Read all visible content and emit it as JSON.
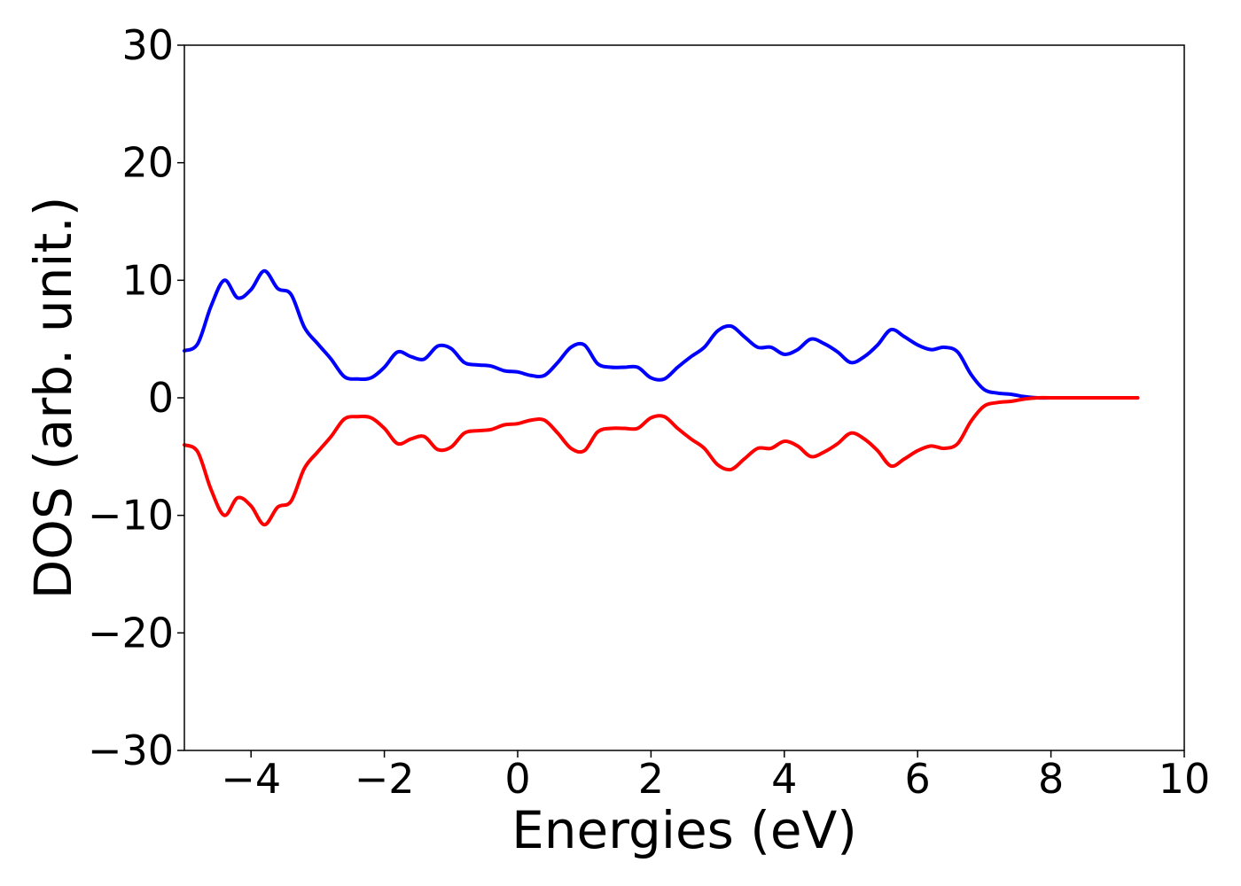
{
  "chart_data": {
    "type": "line",
    "xlabel": "Energies (eV)",
    "ylabel": "DOS (arb. unit.)",
    "xlim": [
      -5,
      10
    ],
    "ylim": [
      -30,
      30
    ],
    "xticks": [
      {
        "value": -4,
        "label": "−4"
      },
      {
        "value": -2,
        "label": "−2"
      },
      {
        "value": 0,
        "label": "0"
      },
      {
        "value": 2,
        "label": "2"
      },
      {
        "value": 4,
        "label": "4"
      },
      {
        "value": 6,
        "label": "6"
      },
      {
        "value": 8,
        "label": "8"
      },
      {
        "value": 10,
        "label": "10"
      }
    ],
    "yticks": [
      {
        "value": 30,
        "label": "30"
      },
      {
        "value": 20,
        "label": "20"
      },
      {
        "value": 10,
        "label": "10"
      },
      {
        "value": 0,
        "label": "0"
      },
      {
        "value": -10,
        "label": "−10"
      },
      {
        "value": -20,
        "label": "−20"
      },
      {
        "value": -30,
        "label": "−30"
      }
    ],
    "grid": false,
    "legend": false,
    "series": [
      {
        "color": "#0000ff",
        "x": [
          -5.0,
          -4.8,
          -4.6,
          -4.4,
          -4.2,
          -4.0,
          -3.8,
          -3.6,
          -3.4,
          -3.2,
          -3.0,
          -2.8,
          -2.6,
          -2.4,
          -2.2,
          -2.0,
          -1.8,
          -1.6,
          -1.4,
          -1.2,
          -1.0,
          -0.8,
          -0.6,
          -0.4,
          -0.2,
          0.0,
          0.2,
          0.4,
          0.6,
          0.8,
          1.0,
          1.2,
          1.4,
          1.6,
          1.8,
          2.0,
          2.2,
          2.4,
          2.6,
          2.8,
          3.0,
          3.2,
          3.4,
          3.6,
          3.8,
          4.0,
          4.2,
          4.4,
          4.6,
          4.8,
          5.0,
          5.2,
          5.4,
          5.6,
          5.8,
          6.0,
          6.2,
          6.4,
          6.6,
          6.8,
          7.0,
          7.2,
          7.4,
          7.6,
          7.8,
          8.0,
          8.5,
          9.0,
          9.3
        ],
        "y": [
          4.0,
          4.6,
          7.8,
          10.0,
          8.5,
          9.2,
          10.8,
          9.3,
          8.8,
          6.0,
          4.6,
          3.3,
          1.8,
          1.6,
          1.7,
          2.6,
          3.9,
          3.5,
          3.3,
          4.4,
          4.2,
          3.0,
          2.8,
          2.7,
          2.3,
          2.2,
          1.9,
          1.9,
          3.0,
          4.3,
          4.5,
          2.9,
          2.6,
          2.6,
          2.6,
          1.7,
          1.6,
          2.6,
          3.5,
          4.3,
          5.7,
          6.1,
          5.2,
          4.3,
          4.3,
          3.7,
          4.1,
          5.0,
          4.6,
          3.9,
          3.0,
          3.5,
          4.5,
          5.8,
          5.2,
          4.5,
          4.1,
          4.3,
          3.9,
          2.0,
          0.7,
          0.4,
          0.3,
          0.1,
          0.0,
          0.0,
          0.0,
          0.0,
          0.0
        ]
      },
      {
        "color": "#ff0000",
        "x": [
          -5.0,
          -4.8,
          -4.6,
          -4.4,
          -4.2,
          -4.0,
          -3.8,
          -3.6,
          -3.4,
          -3.2,
          -3.0,
          -2.8,
          -2.6,
          -2.4,
          -2.2,
          -2.0,
          -1.8,
          -1.6,
          -1.4,
          -1.2,
          -1.0,
          -0.8,
          -0.6,
          -0.4,
          -0.2,
          0.0,
          0.2,
          0.4,
          0.6,
          0.8,
          1.0,
          1.2,
          1.4,
          1.6,
          1.8,
          2.0,
          2.2,
          2.4,
          2.6,
          2.8,
          3.0,
          3.2,
          3.4,
          3.6,
          3.8,
          4.0,
          4.2,
          4.4,
          4.6,
          4.8,
          5.0,
          5.2,
          5.4,
          5.6,
          5.8,
          6.0,
          6.2,
          6.4,
          6.6,
          6.8,
          7.0,
          7.2,
          7.4,
          7.6,
          7.8,
          8.0,
          8.5,
          9.0,
          9.3
        ],
        "y": [
          -4.0,
          -4.6,
          -7.8,
          -10.0,
          -8.5,
          -9.2,
          -10.8,
          -9.3,
          -8.8,
          -6.0,
          -4.6,
          -3.3,
          -1.8,
          -1.6,
          -1.7,
          -2.6,
          -3.9,
          -3.5,
          -3.3,
          -4.4,
          -4.2,
          -3.0,
          -2.8,
          -2.7,
          -2.3,
          -2.2,
          -1.9,
          -1.9,
          -3.0,
          -4.3,
          -4.5,
          -2.9,
          -2.6,
          -2.6,
          -2.6,
          -1.7,
          -1.6,
          -2.6,
          -3.5,
          -4.3,
          -5.7,
          -6.1,
          -5.2,
          -4.3,
          -4.3,
          -3.7,
          -4.1,
          -5.0,
          -4.6,
          -3.9,
          -3.0,
          -3.5,
          -4.5,
          -5.8,
          -5.2,
          -4.5,
          -4.1,
          -4.3,
          -3.9,
          -2.0,
          -0.7,
          -0.4,
          -0.3,
          -0.1,
          0.0,
          0.0,
          0.0,
          0.0,
          0.0
        ]
      }
    ]
  }
}
